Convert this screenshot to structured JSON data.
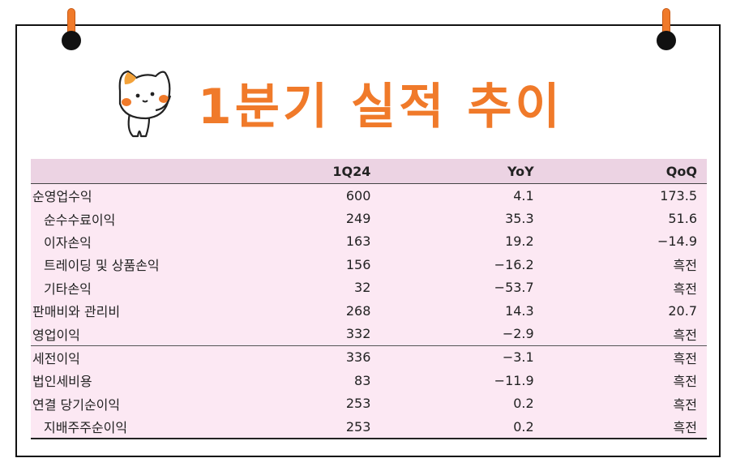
{
  "title": "1분기 실적 추이",
  "colors": {
    "accent": "#f07a2a",
    "header_bg": "#ecd3e3",
    "table_bg": "#fce8f3"
  },
  "table": {
    "headers": [
      "",
      "1Q24",
      "YoY",
      "QoQ"
    ],
    "rows": [
      {
        "label": "순영업수익",
        "q": "600",
        "yoy": "4.1",
        "qoq": "173.5"
      },
      {
        "label": "순수수료이익",
        "q": "249",
        "yoy": "35.3",
        "qoq": "51.6"
      },
      {
        "label": "이자손익",
        "q": "163",
        "yoy": "19.2",
        "qoq": "−14.9"
      },
      {
        "label": "트레이딩 및 상품손익",
        "q": "156",
        "yoy": "−16.2",
        "qoq": "흑전"
      },
      {
        "label": "기타손익",
        "q": "32",
        "yoy": "−53.7",
        "qoq": "흑전"
      },
      {
        "label": "판매비와 관리비",
        "q": "268",
        "yoy": "14.3",
        "qoq": "20.7"
      },
      {
        "label": "영업이익",
        "q": "332",
        "yoy": "−2.9",
        "qoq": "흑전"
      },
      {
        "label": "세전이익",
        "q": "336",
        "yoy": "−3.1",
        "qoq": "흑전"
      },
      {
        "label": "법인세비용",
        "q": "83",
        "yoy": "−11.9",
        "qoq": "흑전"
      },
      {
        "label": "연결 당기순이익",
        "q": "253",
        "yoy": "0.2",
        "qoq": "흑전"
      },
      {
        "label": "지배주주순이익",
        "q": "253",
        "yoy": "0.2",
        "qoq": "흑전"
      }
    ]
  }
}
